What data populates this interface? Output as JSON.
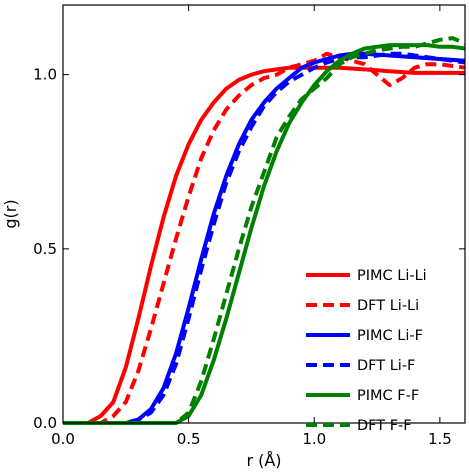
{
  "chart_data": {
    "type": "line",
    "xlabel": "r (Å)",
    "ylabel": "g(r)",
    "xlim": [
      0.0,
      1.6
    ],
    "ylim": [
      0.0,
      1.2
    ],
    "xticks": [
      0.0,
      0.5,
      1.0,
      1.5
    ],
    "xtick_labels": [
      "0.0",
      "0.5",
      "1.0",
      "1.5"
    ],
    "yticks": [
      0.0,
      0.5,
      1.0
    ],
    "ytick_labels": [
      "0.0",
      "0.5",
      "1.0"
    ],
    "grid": false,
    "legend_position": "lower-right",
    "series": [
      {
        "name": "PIMC Li-Li",
        "color": "#ff0000",
        "dash": "solid",
        "x": [
          0.0,
          0.1,
          0.15,
          0.2,
          0.25,
          0.3,
          0.35,
          0.4,
          0.45,
          0.5,
          0.55,
          0.6,
          0.65,
          0.7,
          0.75,
          0.8,
          0.85,
          0.9,
          0.95,
          1.0,
          1.1,
          1.2,
          1.3,
          1.4,
          1.5,
          1.6
        ],
        "y": [
          0.0,
          0.0,
          0.02,
          0.06,
          0.16,
          0.3,
          0.45,
          0.59,
          0.71,
          0.8,
          0.87,
          0.92,
          0.96,
          0.985,
          1.0,
          1.01,
          1.015,
          1.02,
          1.02,
          1.02,
          1.02,
          1.015,
          1.01,
          1.005,
          1.005,
          1.005
        ]
      },
      {
        "name": "DFT Li-Li",
        "color": "#ff0000",
        "dash": "dashed",
        "x": [
          0.0,
          0.15,
          0.2,
          0.25,
          0.3,
          0.35,
          0.4,
          0.45,
          0.5,
          0.55,
          0.6,
          0.65,
          0.7,
          0.75,
          0.8,
          0.85,
          0.9,
          0.95,
          1.0,
          1.05,
          1.1,
          1.15,
          1.2,
          1.25,
          1.3,
          1.35,
          1.4,
          1.45,
          1.5,
          1.55,
          1.6
        ],
        "y": [
          0.0,
          0.0,
          0.02,
          0.06,
          0.15,
          0.27,
          0.4,
          0.53,
          0.65,
          0.76,
          0.84,
          0.9,
          0.94,
          0.97,
          0.99,
          1.0,
          1.02,
          1.03,
          1.04,
          1.06,
          1.05,
          1.04,
          1.03,
          1.0,
          0.97,
          0.99,
          1.02,
          1.03,
          1.03,
          1.025,
          1.02
        ]
      },
      {
        "name": "PIMC Li-F",
        "color": "#0000ff",
        "dash": "solid",
        "x": [
          0.0,
          0.25,
          0.3,
          0.35,
          0.4,
          0.45,
          0.5,
          0.55,
          0.6,
          0.65,
          0.7,
          0.75,
          0.8,
          0.85,
          0.9,
          0.95,
          1.0,
          1.05,
          1.1,
          1.15,
          1.2,
          1.3,
          1.4,
          1.5,
          1.6
        ],
        "y": [
          0.0,
          0.0,
          0.01,
          0.04,
          0.1,
          0.2,
          0.33,
          0.47,
          0.6,
          0.71,
          0.8,
          0.87,
          0.92,
          0.96,
          0.99,
          1.02,
          1.035,
          1.045,
          1.055,
          1.06,
          1.06,
          1.055,
          1.05,
          1.045,
          1.04
        ]
      },
      {
        "name": "DFT Li-F",
        "color": "#0000ff",
        "dash": "dashed",
        "x": [
          0.0,
          0.25,
          0.3,
          0.35,
          0.4,
          0.45,
          0.5,
          0.55,
          0.6,
          0.65,
          0.7,
          0.75,
          0.8,
          0.85,
          0.9,
          0.95,
          1.0,
          1.05,
          1.1,
          1.15,
          1.2,
          1.25,
          1.3,
          1.35,
          1.4,
          1.45,
          1.5,
          1.55,
          1.6
        ],
        "y": [
          0.0,
          0.0,
          0.01,
          0.03,
          0.08,
          0.17,
          0.3,
          0.44,
          0.57,
          0.69,
          0.78,
          0.85,
          0.91,
          0.95,
          0.98,
          1.0,
          1.02,
          1.035,
          1.045,
          1.05,
          1.05,
          1.055,
          1.06,
          1.06,
          1.055,
          1.05,
          1.045,
          1.04,
          1.035
        ]
      },
      {
        "name": "PIMC F-F",
        "color": "#008000",
        "dash": "solid",
        "x": [
          0.0,
          0.45,
          0.5,
          0.55,
          0.6,
          0.65,
          0.7,
          0.75,
          0.8,
          0.85,
          0.9,
          0.95,
          1.0,
          1.05,
          1.1,
          1.15,
          1.2,
          1.25,
          1.3,
          1.35,
          1.4,
          1.45,
          1.5,
          1.55,
          1.6
        ],
        "y": [
          0.0,
          0.0,
          0.02,
          0.08,
          0.18,
          0.3,
          0.43,
          0.56,
          0.68,
          0.78,
          0.86,
          0.92,
          0.97,
          1.01,
          1.04,
          1.06,
          1.075,
          1.08,
          1.085,
          1.085,
          1.085,
          1.085,
          1.08,
          1.08,
          1.075
        ]
      },
      {
        "name": "DFT F-F",
        "color": "#008000",
        "dash": "dashed",
        "x": [
          0.0,
          0.45,
          0.5,
          0.55,
          0.6,
          0.65,
          0.7,
          0.75,
          0.8,
          0.85,
          0.9,
          0.95,
          1.0,
          1.05,
          1.1,
          1.15,
          1.2,
          1.25,
          1.3,
          1.35,
          1.4,
          1.45,
          1.5,
          1.55,
          1.6
        ],
        "y": [
          0.0,
          0.0,
          0.03,
          0.12,
          0.24,
          0.37,
          0.5,
          0.62,
          0.72,
          0.82,
          0.88,
          0.93,
          0.96,
          0.99,
          1.03,
          1.05,
          1.06,
          1.07,
          1.075,
          1.08,
          1.08,
          1.09,
          1.1,
          1.105,
          1.09
        ]
      }
    ]
  }
}
